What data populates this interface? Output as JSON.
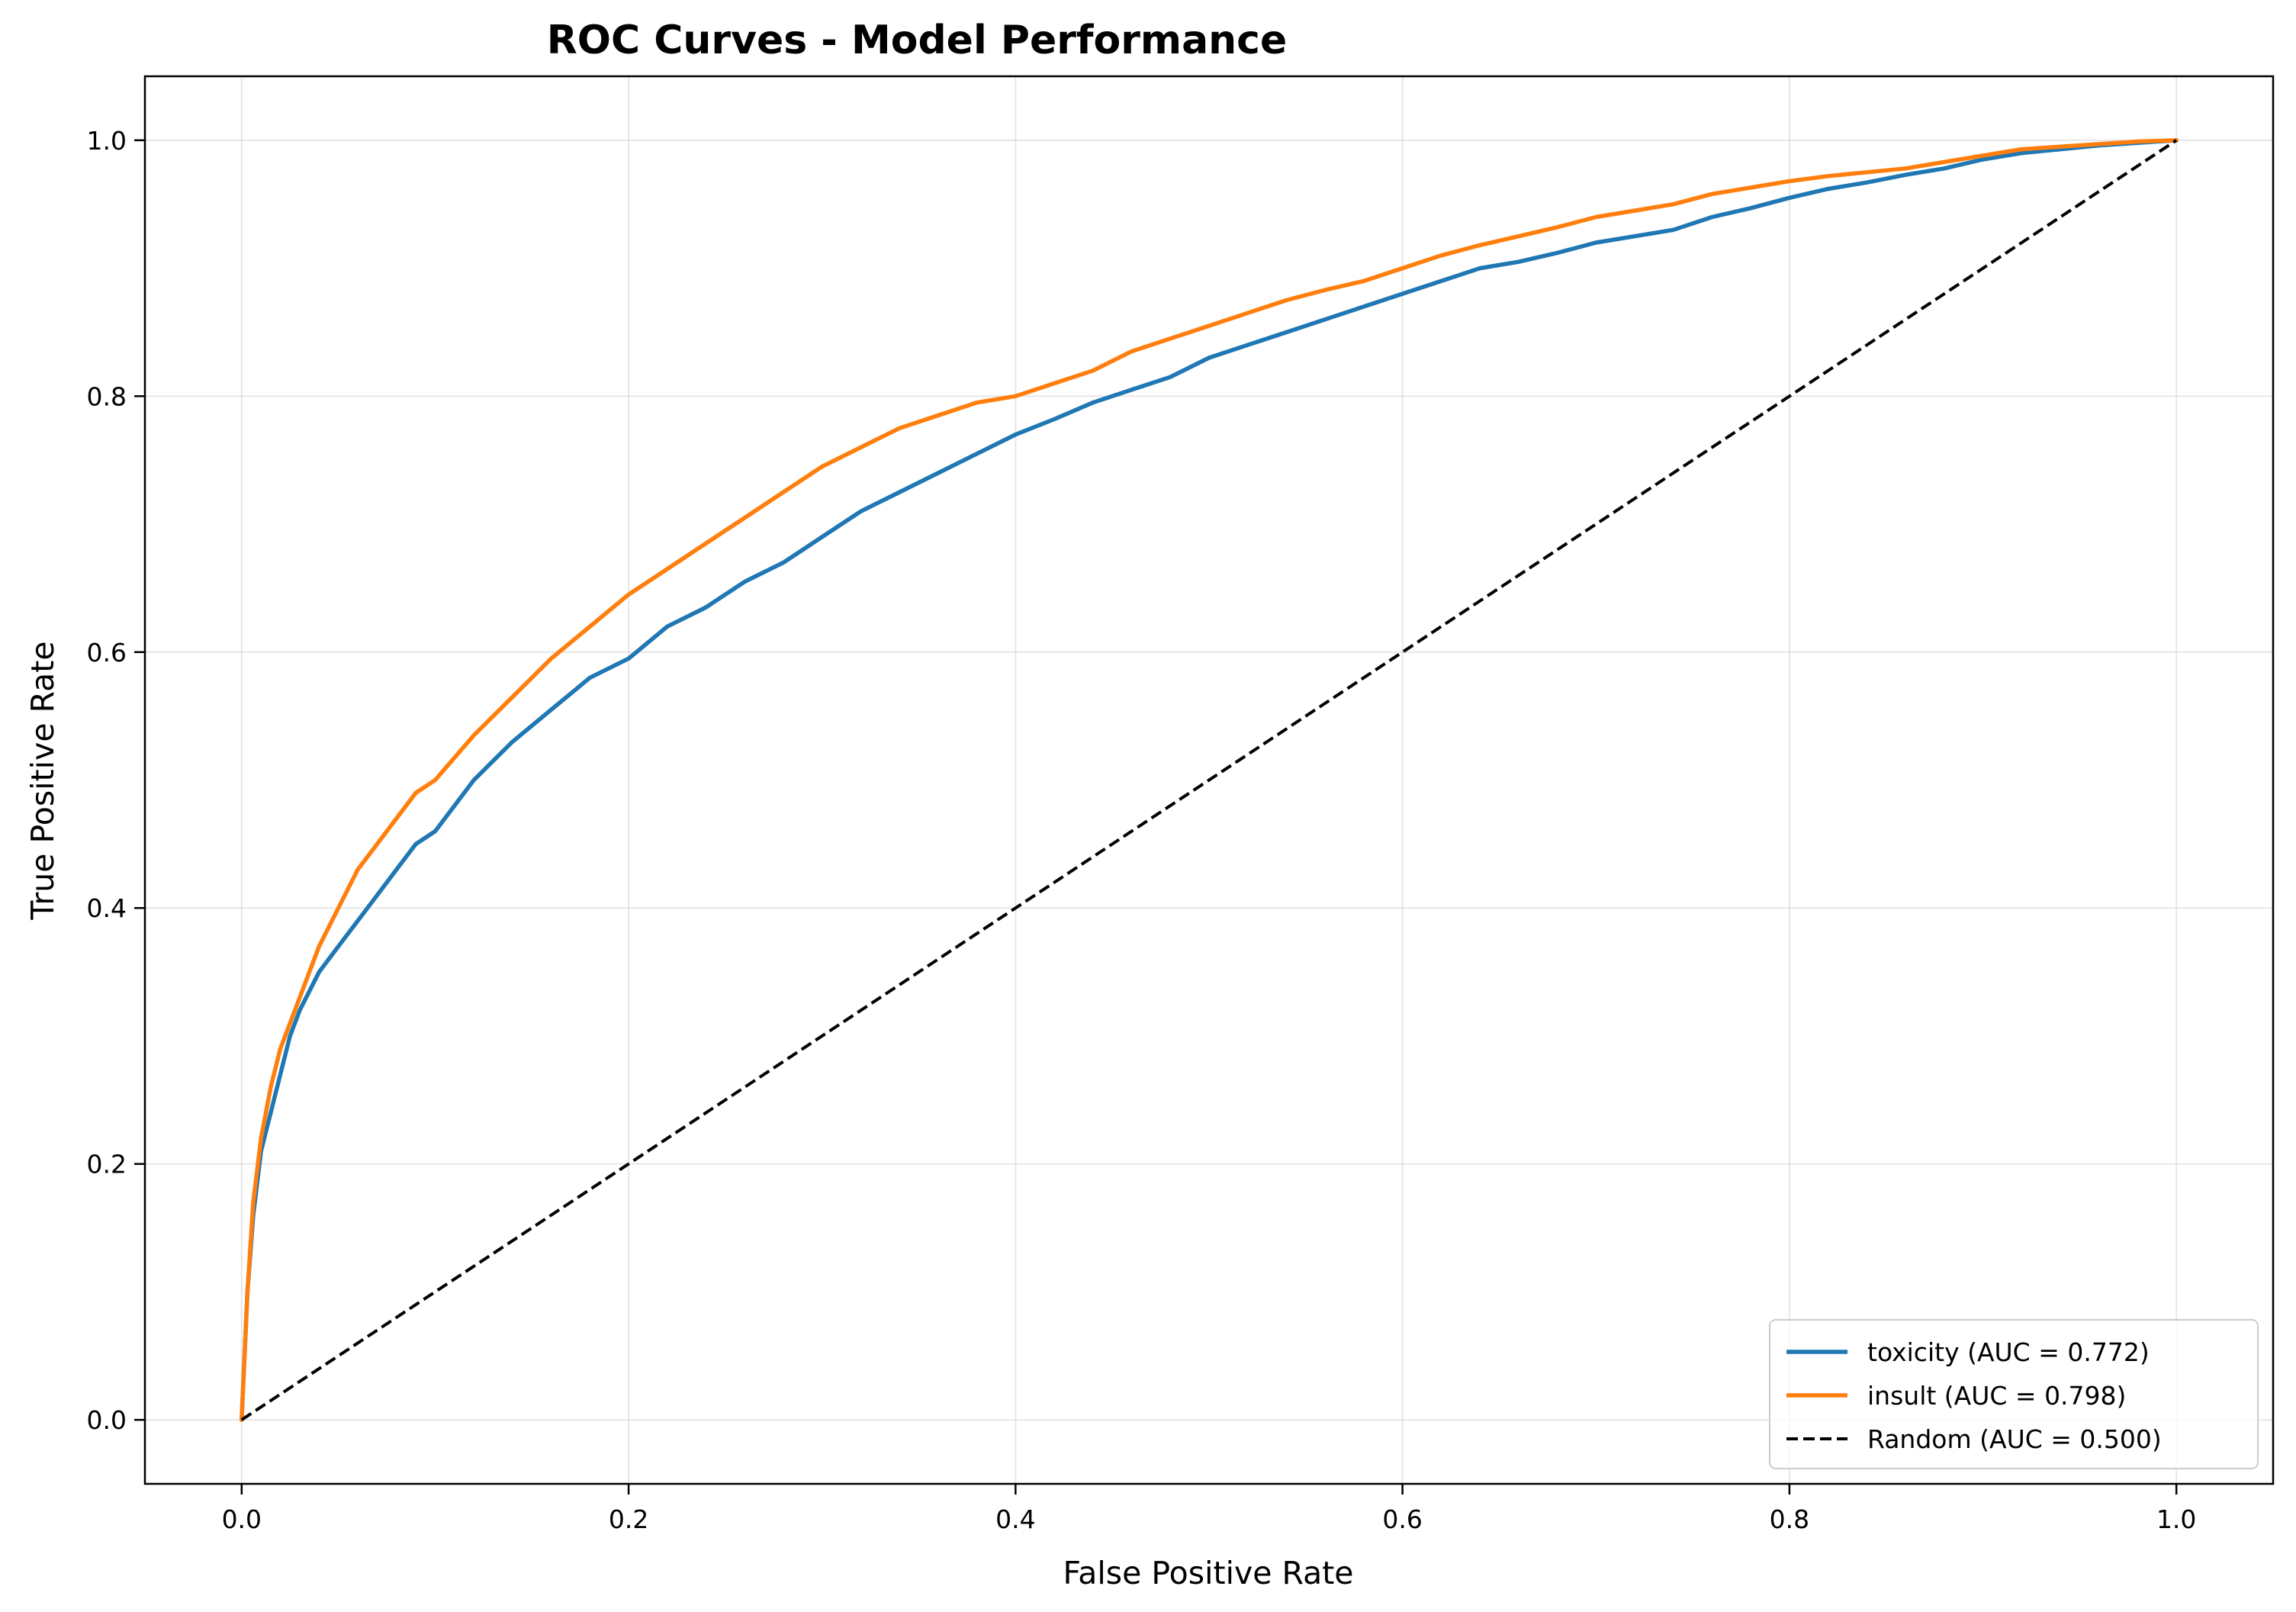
{
  "chart_data": {
    "type": "line",
    "title": "ROC Curves - Model Performance",
    "xlabel": "False Positive Rate",
    "ylabel": "True Positive Rate",
    "xlim": [
      -0.05,
      1.05
    ],
    "ylim": [
      -0.05,
      1.05
    ],
    "xticks": [
      0.0,
      0.2,
      0.4,
      0.6,
      0.8,
      1.0
    ],
    "yticks": [
      0.0,
      0.2,
      0.4,
      0.6,
      0.8,
      1.0
    ],
    "xtick_labels": [
      "0.0",
      "0.2",
      "0.4",
      "0.6",
      "0.8",
      "1.0"
    ],
    "ytick_labels": [
      "0.0",
      "0.2",
      "0.4",
      "0.6",
      "0.8",
      "1.0"
    ],
    "grid": true,
    "legend_position": "bottom-right",
    "series": [
      {
        "name": "toxicity (AUC = 0.772)",
        "color": "#1f77b4",
        "style": "solid",
        "x": [
          0.0,
          0.003,
          0.006,
          0.01,
          0.015,
          0.02,
          0.025,
          0.03,
          0.04,
          0.05,
          0.06,
          0.07,
          0.08,
          0.09,
          0.1,
          0.12,
          0.14,
          0.16,
          0.18,
          0.2,
          0.22,
          0.24,
          0.26,
          0.28,
          0.3,
          0.32,
          0.34,
          0.36,
          0.38,
          0.4,
          0.42,
          0.44,
          0.46,
          0.48,
          0.5,
          0.52,
          0.54,
          0.56,
          0.58,
          0.6,
          0.62,
          0.64,
          0.66,
          0.68,
          0.7,
          0.72,
          0.74,
          0.76,
          0.78,
          0.8,
          0.82,
          0.84,
          0.86,
          0.88,
          0.9,
          0.92,
          0.94,
          0.96,
          0.98,
          1.0
        ],
        "y": [
          0.0,
          0.1,
          0.16,
          0.21,
          0.24,
          0.27,
          0.3,
          0.32,
          0.35,
          0.37,
          0.39,
          0.41,
          0.43,
          0.45,
          0.46,
          0.5,
          0.53,
          0.555,
          0.58,
          0.595,
          0.62,
          0.635,
          0.655,
          0.67,
          0.69,
          0.71,
          0.725,
          0.74,
          0.755,
          0.77,
          0.782,
          0.795,
          0.805,
          0.815,
          0.83,
          0.84,
          0.85,
          0.86,
          0.87,
          0.88,
          0.89,
          0.9,
          0.905,
          0.912,
          0.92,
          0.925,
          0.93,
          0.94,
          0.947,
          0.955,
          0.962,
          0.967,
          0.973,
          0.978,
          0.985,
          0.99,
          0.993,
          0.996,
          0.998,
          1.0
        ]
      },
      {
        "name": "insult (AUC = 0.798)",
        "color": "#ff7f0e",
        "style": "solid",
        "x": [
          0.0,
          0.003,
          0.006,
          0.01,
          0.015,
          0.02,
          0.025,
          0.03,
          0.04,
          0.05,
          0.06,
          0.07,
          0.08,
          0.09,
          0.1,
          0.12,
          0.14,
          0.16,
          0.18,
          0.2,
          0.22,
          0.24,
          0.26,
          0.28,
          0.3,
          0.32,
          0.34,
          0.36,
          0.38,
          0.4,
          0.42,
          0.44,
          0.46,
          0.48,
          0.5,
          0.52,
          0.54,
          0.56,
          0.58,
          0.6,
          0.62,
          0.64,
          0.66,
          0.68,
          0.7,
          0.72,
          0.74,
          0.76,
          0.78,
          0.8,
          0.82,
          0.84,
          0.86,
          0.88,
          0.9,
          0.92,
          0.94,
          0.96,
          0.98,
          1.0
        ],
        "y": [
          0.0,
          0.1,
          0.17,
          0.22,
          0.26,
          0.29,
          0.31,
          0.33,
          0.37,
          0.4,
          0.43,
          0.45,
          0.47,
          0.49,
          0.5,
          0.535,
          0.565,
          0.595,
          0.62,
          0.645,
          0.665,
          0.685,
          0.705,
          0.725,
          0.745,
          0.76,
          0.775,
          0.785,
          0.795,
          0.8,
          0.81,
          0.82,
          0.835,
          0.845,
          0.855,
          0.865,
          0.875,
          0.883,
          0.89,
          0.9,
          0.91,
          0.918,
          0.925,
          0.932,
          0.94,
          0.945,
          0.95,
          0.958,
          0.963,
          0.968,
          0.972,
          0.975,
          0.978,
          0.983,
          0.988,
          0.993,
          0.995,
          0.997,
          0.999,
          1.0
        ]
      },
      {
        "name": "Random (AUC = 0.500)",
        "color": "#000000",
        "style": "dashed",
        "x": [
          0.0,
          1.0
        ],
        "y": [
          0.0,
          1.0
        ]
      }
    ]
  }
}
